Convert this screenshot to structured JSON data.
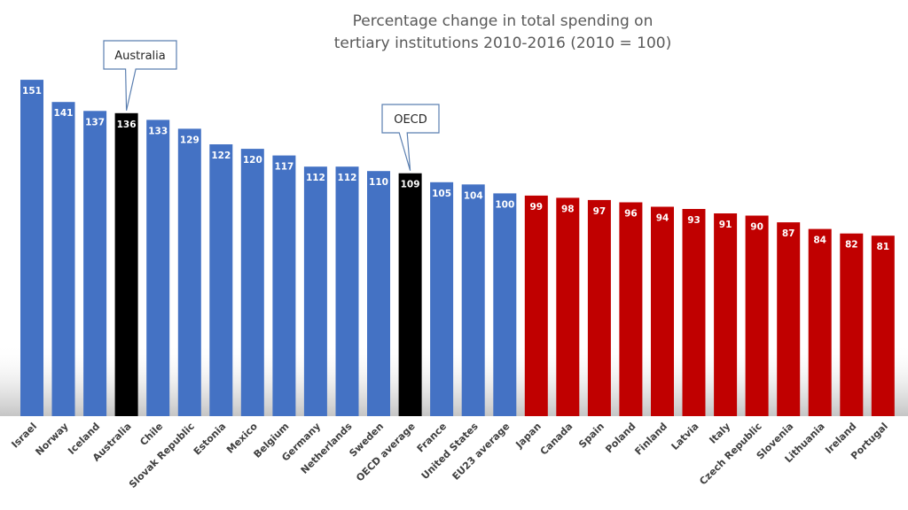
{
  "chart_data": {
    "type": "bar",
    "title": [
      "Percentage change in total spending on",
      "tertiary institutions 2010-2016 (2010 = 100)"
    ],
    "xlabel": "",
    "ylabel": "",
    "ylim": [
      0,
      155
    ],
    "grid": false,
    "legend": "none",
    "categories": [
      "Israel",
      "Norway",
      "Iceland",
      "Australia",
      "Chile",
      "Slovak Republic",
      "Estonia",
      "Mexico",
      "Belgium",
      "Germany",
      "Netherlands",
      "Sweden",
      "OECD average",
      "France",
      "United States",
      "EU23 average",
      "Japan",
      "Canada",
      "Spain",
      "Poland",
      "Finland",
      "Latvia",
      "Italy",
      "Czech Republic",
      "Slovenia",
      "Lithuania",
      "Ireland",
      "Portugal"
    ],
    "values": [
      151,
      141,
      137,
      136,
      133,
      129,
      122,
      120,
      117,
      112,
      112,
      110,
      109,
      105,
      104,
      100,
      99,
      98,
      97,
      96,
      94,
      93,
      91,
      90,
      87,
      84,
      82,
      81
    ],
    "colors": [
      "#4472c4",
      "#4472c4",
      "#4472c4",
      "#000000",
      "#4472c4",
      "#4472c4",
      "#4472c4",
      "#4472c4",
      "#4472c4",
      "#4472c4",
      "#4472c4",
      "#4472c4",
      "#000000",
      "#4472c4",
      "#4472c4",
      "#4472c4",
      "#c00000",
      "#c00000",
      "#c00000",
      "#c00000",
      "#c00000",
      "#c00000",
      "#c00000",
      "#c00000",
      "#c00000",
      "#c00000",
      "#c00000",
      "#c00000"
    ],
    "annotations": [
      {
        "text": "Australia",
        "category": "Australia"
      },
      {
        "text": "OECD",
        "category": "OECD average"
      }
    ]
  },
  "colors": {
    "above_average": "#4472c4",
    "highlight": "#000000",
    "below_average": "#c00000",
    "value_label": "#ffffff",
    "tick_label": "#404040",
    "title": "#595959",
    "callout_border": "#5b7fb0"
  }
}
